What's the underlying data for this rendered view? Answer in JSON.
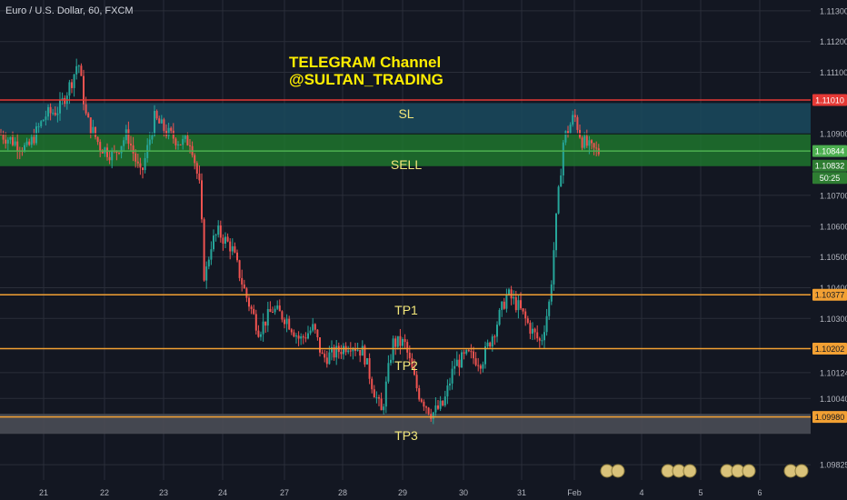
{
  "header": {
    "symbol": "Euro / U.S. Dollar, 60, FXCM"
  },
  "annotation": {
    "line1": "TELEGRAM Channel",
    "line2": "@SULTAN_TRADING"
  },
  "zones": {
    "sl": "SL",
    "sell": "SELL",
    "tp1": "TP1",
    "tp2": "TP2",
    "tp3": "TP3"
  },
  "countdown": "50:25",
  "colors": {
    "background": "#131722",
    "bull": "#26a69a",
    "bear": "#ef5350",
    "sl_zone": "#1a4a5e",
    "sell_zone": "#1f7a2e",
    "target": "#f2a033",
    "sl_line": "#e53935",
    "sell_line": "#4caf50",
    "grid": "#2a2e39",
    "text": "#d1d4dc"
  },
  "chart_data": {
    "type": "candlestick",
    "title": "Euro / U.S. Dollar, 60, FXCM",
    "ylim": [
      1.09775,
      1.11335
    ],
    "y_ticks": [
      "1.11300",
      "1.11200",
      "1.11100",
      "1.10900",
      "1.10700",
      "1.10600",
      "1.10500",
      "1.10400",
      "1.10300",
      "1.10124",
      "1.10040",
      "1.09825"
    ],
    "x_ticks": [
      "21",
      "22",
      "23",
      "24",
      "27",
      "28",
      "29",
      "30",
      "31",
      "Feb",
      "4",
      "5",
      "6"
    ],
    "price_labels": [
      {
        "text": "1.11010",
        "value": 1.1101,
        "kind": "sl"
      },
      {
        "text": "1.10844",
        "value": 1.10844,
        "kind": "sell"
      },
      {
        "text": "1.10832",
        "value": 1.10832,
        "kind": "last"
      },
      {
        "text": "1.10377",
        "value": 1.10377,
        "kind": "tp"
      },
      {
        "text": "1.10202",
        "value": 1.10202,
        "kind": "tp"
      },
      {
        "text": "1.09980",
        "value": 1.0998,
        "kind": "tp"
      }
    ],
    "levels": {
      "sl": 1.1101,
      "sl_zone": [
        1.109,
        1.11
      ],
      "sell": 1.10844,
      "sell_zone": [
        1.10795,
        1.109
      ],
      "tp1": 1.10377,
      "tp2": 1.10202,
      "tp3": 1.0998,
      "tp3_zone": [
        1.09925,
        1.0999
      ]
    },
    "close_path": [
      [
        0,
        1.109
      ],
      [
        30,
        1.1085
      ],
      [
        50,
        1.1096
      ],
      [
        65,
        1.1098
      ],
      [
        80,
        1.1108
      ],
      [
        86,
        1.1114
      ],
      [
        95,
        1.1095
      ],
      [
        110,
        1.1086
      ],
      [
        125,
        1.1083
      ],
      [
        140,
        1.109
      ],
      [
        155,
        1.1076
      ],
      [
        170,
        1.1095
      ],
      [
        185,
        1.109
      ],
      [
        200,
        1.1087
      ],
      [
        210,
        1.1088
      ],
      [
        220,
        1.1072
      ],
      [
        225,
        1.1042
      ],
      [
        232,
        1.1054
      ],
      [
        240,
        1.1058
      ],
      [
        255,
        1.1053
      ],
      [
        270,
        1.1038
      ],
      [
        285,
        1.1026
      ],
      [
        300,
        1.1033
      ],
      [
        315,
        1.103
      ],
      [
        330,
        1.1023
      ],
      [
        345,
        1.1027
      ],
      [
        355,
        1.1017
      ],
      [
        370,
        1.1019
      ],
      [
        385,
        1.1022
      ],
      [
        400,
        1.1019
      ],
      [
        410,
        1.1008
      ],
      [
        420,
        1.0999
      ],
      [
        432,
        1.1022
      ],
      [
        445,
        1.1022
      ],
      [
        460,
        1.1006
      ],
      [
        475,
        1.0999
      ],
      [
        488,
        1.1002
      ],
      [
        500,
        1.1015
      ],
      [
        515,
        1.1018
      ],
      [
        530,
        1.1016
      ],
      [
        545,
        1.1027
      ],
      [
        558,
        1.1038
      ],
      [
        570,
        1.1034
      ],
      [
        585,
        1.1026
      ],
      [
        595,
        1.1022
      ],
      [
        605,
        1.1036
      ],
      [
        612,
        1.1062
      ],
      [
        620,
        1.1088
      ],
      [
        632,
        1.1096
      ],
      [
        640,
        1.1088
      ],
      [
        650,
        1.1085
      ],
      [
        660,
        1.1084
      ]
    ]
  }
}
